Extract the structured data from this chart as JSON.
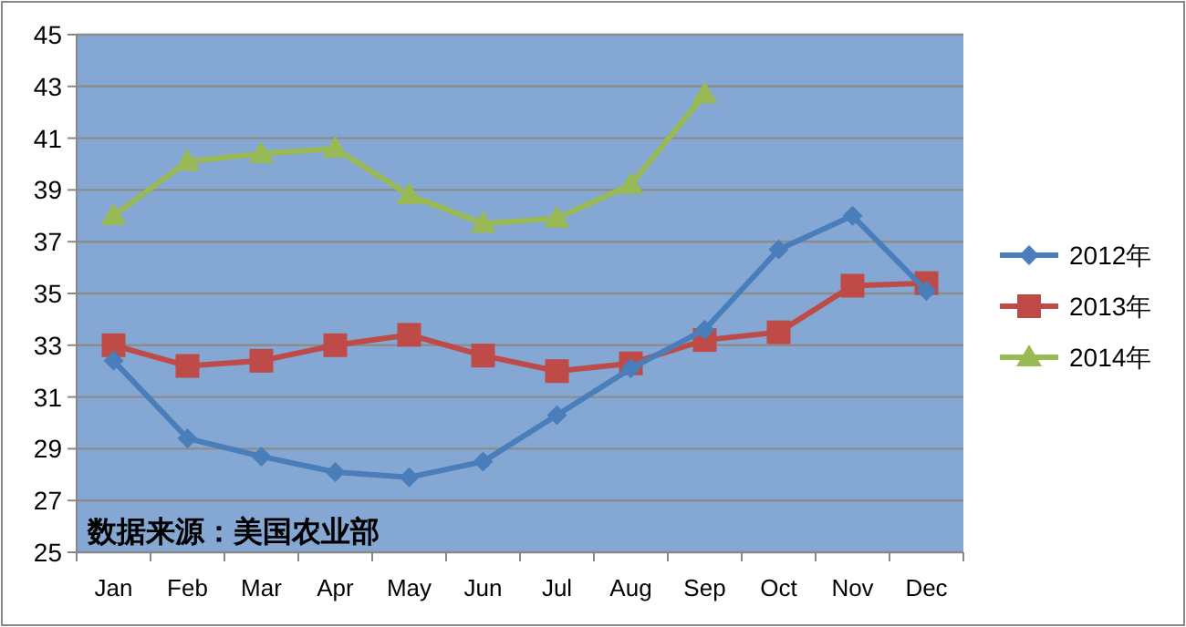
{
  "chart_data": {
    "type": "line",
    "categories": [
      "Jan",
      "Feb",
      "Mar",
      "Apr",
      "May",
      "Jun",
      "Jul",
      "Aug",
      "Sep",
      "Oct",
      "Nov",
      "Dec"
    ],
    "series": [
      {
        "name": "2012年",
        "color": "#4a7ebb",
        "marker": "diamond",
        "values": [
          32.4,
          29.4,
          28.7,
          28.1,
          27.9,
          28.5,
          30.3,
          32.1,
          33.6,
          36.7,
          38.0,
          35.1
        ]
      },
      {
        "name": "2013年",
        "color": "#be4b48",
        "marker": "square",
        "values": [
          33.0,
          32.2,
          32.4,
          33.0,
          33.4,
          32.6,
          32.0,
          32.3,
          33.2,
          33.5,
          35.3,
          35.4
        ]
      },
      {
        "name": "2014年",
        "color": "#98b954",
        "marker": "triangle",
        "values": [
          38.0,
          40.1,
          40.4,
          40.6,
          38.8,
          37.7,
          37.9,
          39.2,
          42.7,
          null,
          null,
          null
        ]
      }
    ],
    "ylim": [
      25,
      45
    ],
    "yticks": [
      25,
      27,
      29,
      31,
      33,
      35,
      37,
      39,
      41,
      43,
      45
    ],
    "grid": "y",
    "legend": "right",
    "line_style": "solid",
    "annotations": [
      "数据来源：美国农业部"
    ]
  }
}
